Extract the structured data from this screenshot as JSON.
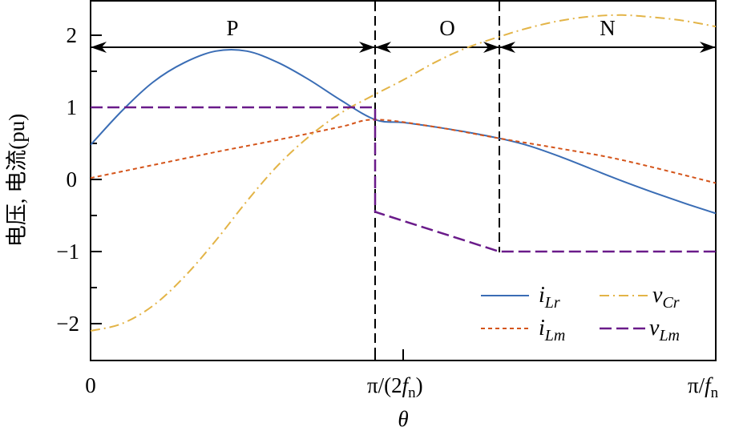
{
  "chart_data": {
    "type": "line",
    "title": "",
    "xlabel": "θ",
    "ylabel": "电压, 电流(pu)",
    "x_ticks": [
      {
        "label": "0",
        "pos": 0
      },
      {
        "label": "π/(2f_n)",
        "pos": 0.5
      },
      {
        "label": "π/f_n",
        "pos": 1.0
      }
    ],
    "y_ticks": [
      "-2",
      "-1",
      "0",
      "1",
      "2"
    ],
    "ylim": [
      -2.5,
      2.5
    ],
    "xlim": [
      0,
      1
    ],
    "grid": false,
    "legend_position": "lower right",
    "regions": [
      {
        "label": "P",
        "x_start": 0.0,
        "x_end": 0.455
      },
      {
        "label": "O",
        "x_start": 0.455,
        "x_end": 0.654
      },
      {
        "label": "N",
        "x_start": 0.654,
        "x_end": 1.0
      }
    ],
    "series": [
      {
        "name": "i_Lr",
        "style": "solid",
        "color": "#3a6db5",
        "x": [
          0,
          0.05,
          0.1,
          0.15,
          0.2,
          0.25,
          0.3,
          0.35,
          0.4,
          0.455,
          0.5,
          0.55,
          0.6,
          0.654,
          0.7,
          0.75,
          0.8,
          0.85,
          0.9,
          0.95,
          1.0
        ],
        "values": [
          0.48,
          0.95,
          1.35,
          1.62,
          1.78,
          1.78,
          1.62,
          1.38,
          1.1,
          0.83,
          0.79,
          0.73,
          0.66,
          0.57,
          0.47,
          0.32,
          0.15,
          -0.02,
          -0.18,
          -0.33,
          -0.47
        ]
      },
      {
        "name": "i_Lm",
        "style": "dotted",
        "color": "#d4541a",
        "x": [
          0,
          0.1,
          0.2,
          0.3,
          0.4,
          0.455,
          0.55,
          0.654,
          0.75,
          0.85,
          1.0
        ],
        "values": [
          0.02,
          0.2,
          0.38,
          0.55,
          0.73,
          0.83,
          0.73,
          0.57,
          0.43,
          0.27,
          -0.05
        ]
      },
      {
        "name": "v_Cr",
        "style": "dashdot",
        "color": "#e3b447",
        "x": [
          0,
          0.05,
          0.1,
          0.15,
          0.2,
          0.25,
          0.3,
          0.35,
          0.4,
          0.455,
          0.5,
          0.55,
          0.6,
          0.654,
          0.7,
          0.75,
          0.8,
          0.85,
          0.9,
          0.95,
          1.0
        ],
        "values": [
          -2.1,
          -2.0,
          -1.75,
          -1.35,
          -0.85,
          -0.3,
          0.2,
          0.6,
          0.92,
          1.18,
          1.38,
          1.62,
          1.82,
          1.98,
          2.1,
          2.2,
          2.26,
          2.28,
          2.25,
          2.2,
          2.12
        ]
      },
      {
        "name": "v_Lm",
        "style": "dashed",
        "color": "#6a1b8a",
        "x": [
          0,
          0.455,
          0.455,
          0.654,
          1.0
        ],
        "values": [
          1.0,
          1.0,
          -0.45,
          -1.0,
          -1.0
        ]
      }
    ]
  },
  "legend": {
    "items": [
      {
        "main": "i",
        "sub": "Lr",
        "color": "#3a6db5",
        "dash": ""
      },
      {
        "main": "v",
        "sub": "Cr",
        "color": "#e3b447",
        "dash": "10 4 2 4"
      },
      {
        "main": "i",
        "sub": "Lm",
        "color": "#d4541a",
        "dash": "4 3"
      },
      {
        "main": "v",
        "sub": "Lm",
        "color": "#6a1b8a",
        "dash": "14 6"
      }
    ]
  },
  "labels": {
    "x_tick_0": "0",
    "x_tick_mid_main": "π/(2",
    "x_tick_mid_f": "f",
    "x_tick_mid_sub": "n",
    "x_tick_mid_close": ")",
    "x_tick_end_main": "π/",
    "x_tick_end_f": "f",
    "x_tick_end_sub": "n",
    "x_title": "θ",
    "y_title": "电压, 电流(pu)",
    "region_p": "P",
    "region_o": "O",
    "region_n": "N",
    "y_tick_2": "2",
    "y_tick_1": "1",
    "y_tick_0": "0",
    "y_tick_m1": "−1",
    "y_tick_m2": "−2"
  }
}
